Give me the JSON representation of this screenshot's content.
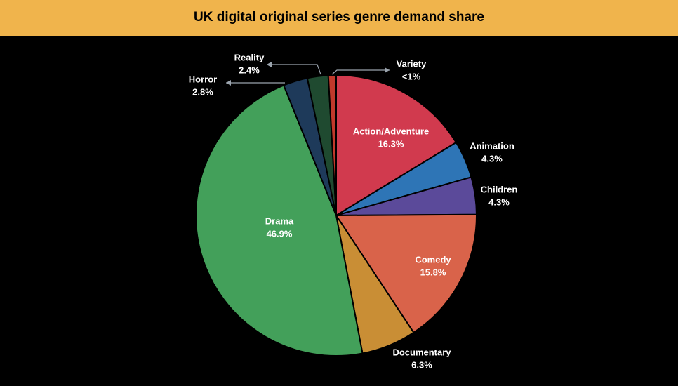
{
  "chart_data": {
    "type": "pie",
    "title": "UK digital original series genre demand share",
    "categories": [
      "Action/Adventure",
      "Animation",
      "Children",
      "Comedy",
      "Documentary",
      "Drama",
      "Horror",
      "Reality",
      "Variety"
    ],
    "values": [
      16.3,
      4.3,
      4.3,
      15.8,
      6.3,
      46.9,
      2.8,
      2.4,
      0.9
    ],
    "value_labels": [
      "16.3%",
      "4.3%",
      "4.3%",
      "15.8%",
      "6.3%",
      "46.9%",
      "2.8%",
      "2.4%",
      "<1%"
    ],
    "colors": [
      "#d13a4e",
      "#2e75b6",
      "#5b4a9a",
      "#d9634a",
      "#c98e35",
      "#43a05a",
      "#1e3a5a",
      "#1f4a30",
      "#c0392b"
    ]
  }
}
